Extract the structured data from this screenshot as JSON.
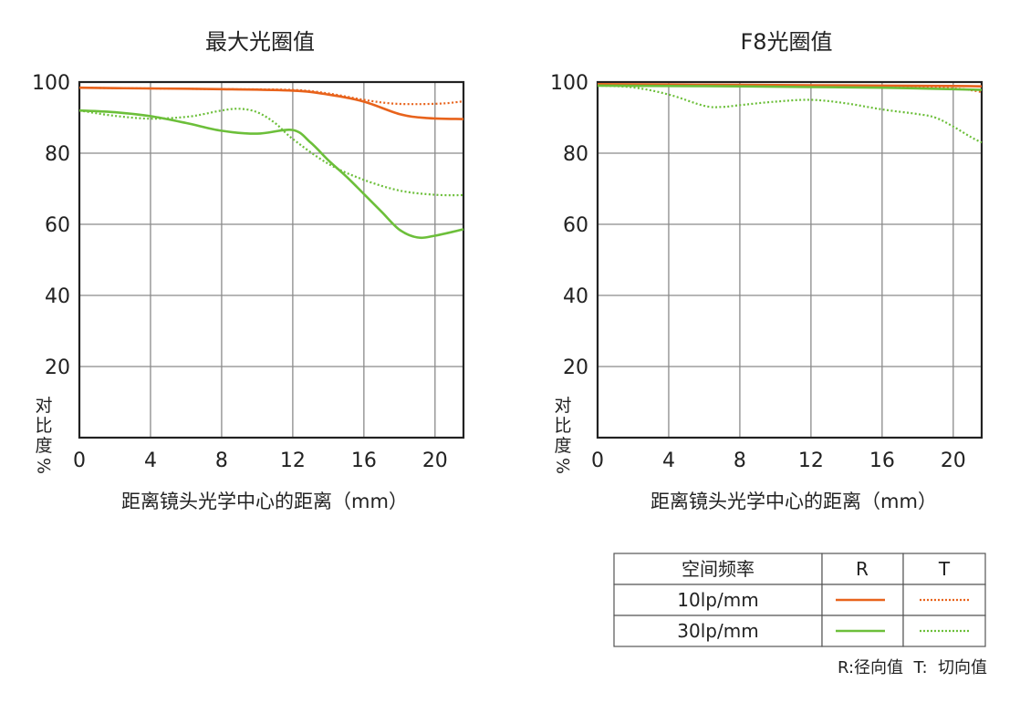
{
  "chart_data": [
    {
      "type": "line",
      "title": "最大光圈值",
      "xlabel": "距离镜头光学中心的距离（mm）",
      "ylabel": "对比度%",
      "xlim": [
        0,
        21.6
      ],
      "ylim": [
        0,
        100
      ],
      "xticks": [
        0,
        4,
        8,
        12,
        16,
        20
      ],
      "yticks": [
        20,
        40,
        60,
        80,
        100
      ],
      "grid": true,
      "series": [
        {
          "name": "10lp/mm R",
          "color": "#e8631c",
          "dash": "solid",
          "x": [
            0,
            4,
            8,
            12,
            14,
            16,
            18,
            19.5,
            21.6
          ],
          "y": [
            98.4,
            98.2,
            98.0,
            97.6,
            96.5,
            94.5,
            91.0,
            89.9,
            89.6
          ]
        },
        {
          "name": "10lp/mm T",
          "color": "#e8631c",
          "dash": "dotted",
          "x": [
            0,
            4,
            8,
            12,
            14,
            16,
            17.5,
            19,
            20.5,
            21.6
          ],
          "y": [
            98.4,
            98.2,
            98.0,
            97.8,
            96.8,
            95.0,
            94.0,
            93.8,
            94.0,
            94.6
          ]
        },
        {
          "name": "30lp/mm R",
          "color": "#6cbf3a",
          "dash": "solid",
          "x": [
            0,
            2,
            4,
            6,
            8,
            10,
            12,
            13,
            14,
            15,
            16,
            17,
            18,
            19,
            20,
            21.6
          ],
          "y": [
            92.0,
            91.5,
            90.4,
            88.5,
            86.3,
            85.5,
            86.5,
            83.0,
            78.0,
            73.5,
            68.5,
            63.5,
            58.5,
            56.3,
            56.8,
            58.6
          ]
        },
        {
          "name": "30lp/mm T",
          "color": "#6cbf3a",
          "dash": "dotted",
          "x": [
            0,
            2,
            4,
            6,
            7,
            8,
            9,
            10,
            11,
            12,
            14,
            16,
            18,
            20,
            21.6
          ],
          "y": [
            92.0,
            90.5,
            89.7,
            90.2,
            91.0,
            92.0,
            92.5,
            91.5,
            88.5,
            84.0,
            77.0,
            72.5,
            69.5,
            68.3,
            68.2
          ]
        }
      ]
    },
    {
      "type": "line",
      "title": "F8光圈值",
      "xlabel": "距离镜头光学中心的距离（mm）",
      "ylabel": "对比度%",
      "xlim": [
        0,
        21.6
      ],
      "ylim": [
        0,
        100
      ],
      "xticks": [
        0,
        4,
        8,
        12,
        16,
        20
      ],
      "yticks": [
        20,
        40,
        60,
        80,
        100
      ],
      "grid": true,
      "series": [
        {
          "name": "10lp/mm R",
          "color": "#e8631c",
          "dash": "solid",
          "x": [
            0,
            4,
            8,
            12,
            16,
            20,
            21.6
          ],
          "y": [
            99.4,
            99.3,
            99.2,
            99.1,
            99.0,
            98.9,
            98.8
          ]
        },
        {
          "name": "10lp/mm T",
          "color": "#e8631c",
          "dash": "dotted",
          "x": [
            0,
            4,
            8,
            12,
            16,
            20,
            21.6
          ],
          "y": [
            99.3,
            99.1,
            98.9,
            98.8,
            98.6,
            98.2,
            97.2
          ]
        },
        {
          "name": "30lp/mm R",
          "color": "#6cbf3a",
          "dash": "solid",
          "x": [
            0,
            4,
            8,
            12,
            16,
            20,
            21.6
          ],
          "y": [
            99.0,
            98.9,
            98.8,
            98.6,
            98.4,
            98.0,
            97.8
          ]
        },
        {
          "name": "30lp/mm T",
          "color": "#6cbf3a",
          "dash": "dotted",
          "x": [
            0,
            2,
            4,
            6,
            7,
            8,
            10,
            12,
            14,
            16,
            18,
            19,
            20,
            21,
            21.6
          ],
          "y": [
            99.0,
            98.5,
            96.5,
            93.3,
            93.0,
            93.5,
            94.5,
            95.0,
            94.0,
            92.3,
            91.0,
            90.0,
            87.5,
            84.5,
            83.0
          ]
        }
      ]
    }
  ],
  "legend": {
    "header": "空间频率",
    "col_r": "R",
    "col_t": "T",
    "rows": [
      {
        "label": "10lp/mm",
        "color": "#e8631c"
      },
      {
        "label": "30lp/mm",
        "color": "#6cbf3a"
      }
    ]
  },
  "note": "R:径向值  T:  切向值"
}
